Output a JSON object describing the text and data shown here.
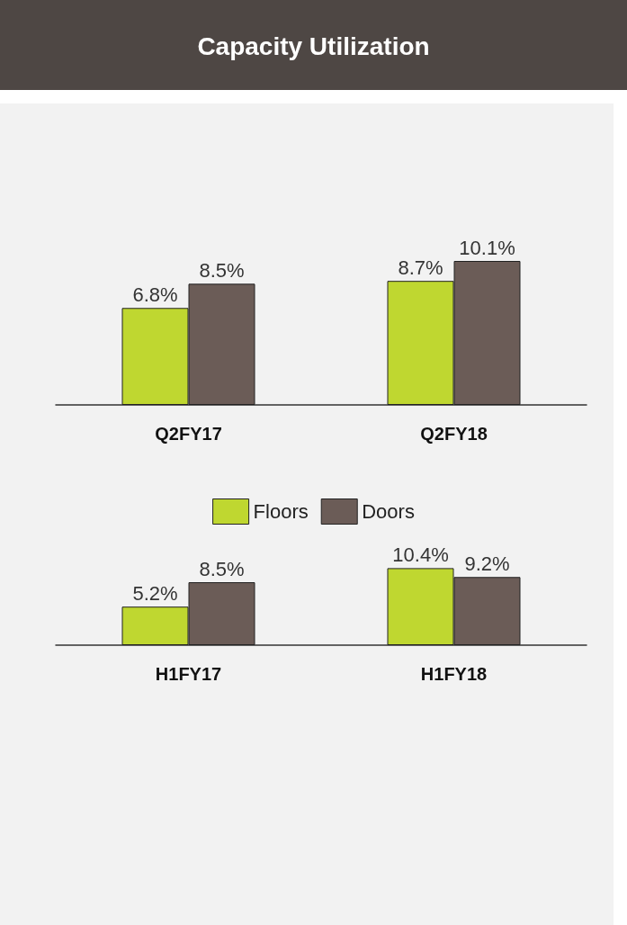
{
  "chart_data": [
    {
      "type": "bar",
      "title": "Capacity Utilization",
      "categories": [
        "Q2FY17",
        "Q2FY18"
      ],
      "series": [
        {
          "name": "Floors",
          "color": "#bfd730",
          "values": [
            6.8,
            8.7
          ],
          "value_labels": [
            "6.8%",
            "8.7%"
          ]
        },
        {
          "name": "Doors",
          "color": "#6b5c57",
          "values": [
            8.5,
            10.1
          ],
          "value_labels": [
            "8.5%",
            "10.1%"
          ]
        }
      ],
      "legend": "bottom"
    },
    {
      "type": "bar",
      "categories": [
        "H1FY17",
        "H1FY18"
      ],
      "series": [
        {
          "color": "#bfd730",
          "values": [
            5.2,
            10.4
          ],
          "value_labels": [
            "5.2%",
            "10.4%"
          ]
        },
        {
          "color": "#6b5c57",
          "values": [
            8.5,
            9.2
          ],
          "value_labels": [
            "8.5%",
            "9.2%"
          ]
        }
      ]
    }
  ]
}
